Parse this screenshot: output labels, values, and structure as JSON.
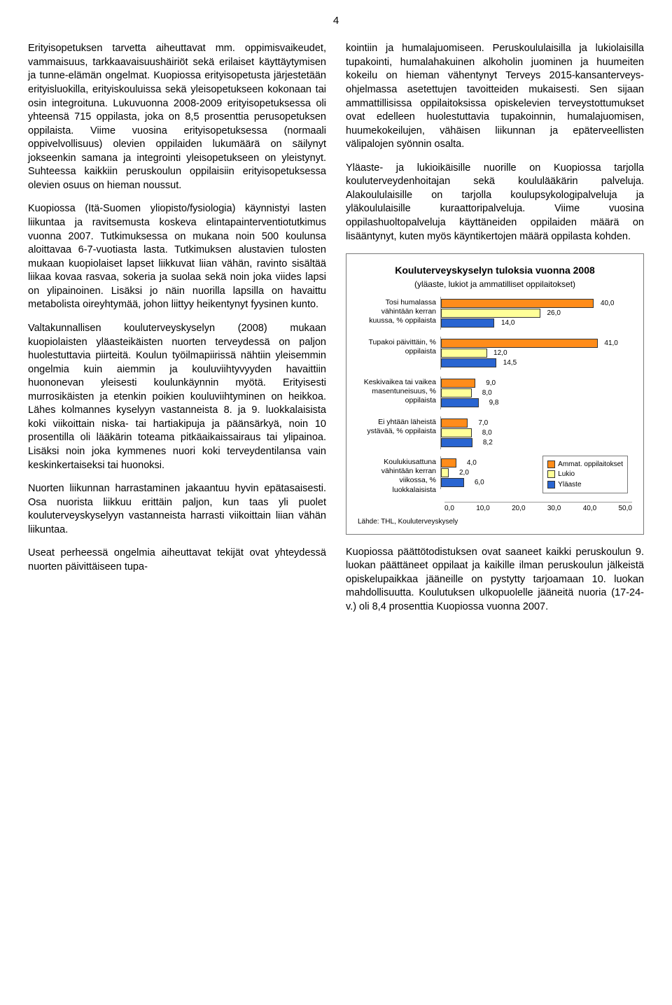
{
  "pageNumber": "4",
  "leftColumn": {
    "paragraphs": [
      "Erityisopetuksen tarvetta aiheuttavat mm. oppimisvaikeudet, vammaisuus, tarkkaavaisuushäiriöt sekä erilaiset käyttäytymisen ja tunne-elämän ongelmat. Kuopiossa erityisopetusta järjestetään erityisluokilla, erityiskouluissa sekä yleisopetukseen kokonaan tai osin integroituna. Lukuvuonna 2008-2009 erityisopetuksessa oli yhteensä 715 oppilasta, joka on 8,5 prosenttia perusopetuksen oppilaista. Viime vuosina erityisopetuksessa (normaali oppivelvollisuus) olevien oppilaiden lukumäärä on säilynyt jokseenkin samana ja integrointi yleisopetukseen on yleistynyt. Suhteessa kaikkiin peruskoulun oppilaisiin erityisopetuksessa olevien osuus on hieman noussut.",
      "Kuopiossa (Itä-Suomen yliopisto/fysiologia) käynnistyi lasten liikuntaa ja ravitsemusta koskeva elintapainterventiotutkimus vuonna 2007. Tutkimuksessa on mukana noin 500 koulunsa aloittavaa 6-7-vuotiasta lasta. Tutkimuksen alustavien tulosten mukaan kuopiolaiset lapset liikkuvat liian vähän, ravinto sisältää liikaa kovaa rasvaa, sokeria ja suolaa sekä noin joka viides lapsi on ylipainoinen. Lisäksi jo näin nuorilla lapsilla on havaittu metabolista oireyhtymää, johon liittyy heikentynyt fyysinen kunto.",
      "Valtakunnallisen kouluterveyskyselyn (2008) mukaan kuopiolaisten yläasteikäisten nuorten terveydessä on paljon huolestuttavia piirteitä. Koulun työilmapiirissä nähtiin yleisemmin ongelmia kuin aiemmin ja kouluviihtyvyyden havaittiin huononevan yleisesti koulunkäynnin myötä. Erityisesti murrosikäisten ja etenkin poikien kouluviihtyminen on heikkoa. Lähes kolmannes kyselyyn vastanneista 8. ja 9. luokkalaisista koki viikoittain niska- tai hartiakipuja ja päänsärkyä, noin 10 prosentilla oli lääkärin toteama pitkäaikaissairaus tai ylipainoa. Lisäksi noin joka kymmenes nuori koki terveydentilansa vain keskinkertaiseksi tai huonoksi.",
      "Nuorten liikunnan harrastaminen jakaantuu hyvin epätasaisesti. Osa nuorista liikkuu erittäin paljon, kun taas yli puolet kouluterveyskyselyyn vastanneista harrasti viikoittain liian vähän liikuntaa.",
      "Useat perheessä ongelmia aiheuttavat tekijät ovat yhteydessä nuorten päivittäiseen tupa-"
    ]
  },
  "rightColumn": {
    "paragraphs": [
      "kointiin ja humalajuomiseen. Peruskoululaisilla ja lukiolaisilla tupakointi, humalahakuinen alkoholin juominen ja huumeiten kokeilu on hieman vähentynyt Terveys 2015-kansanterveys-ohjelmassa asetettujen tavoitteiden mukaisesti. Sen sijaan ammattillisissa oppilaitoksissa opiskelevien terveystottumukset ovat edelleen huolestuttavia tupakoinnin, humalajuomisen, huumekokeilujen, vähäisen liikunnan ja epäterveellisten välipalojen syönnin osalta.",
      "Yläaste- ja lukioikäisille nuorille on Kuopiossa tarjolla kouluterveydenhoitajan sekä koululääkärin palveluja. Alakoululaisille on tarjolla koulupsykologipalveluja ja yläkoululaisille kuraattoripalveluja. Viime vuosina oppilashuoltopalveluja käyttäneiden oppilaiden määrä on lisääntynyt, kuten myös käyntikertojen määrä oppilasta kohden."
    ],
    "closing": "Kuopiossa päättötodistuksen ovat saaneet kaikki peruskoulun 9. luokan päättäneet oppilaat ja kaikille ilman peruskoulun jälkeistä opiskelupaikkaa jääneille on pystytty tarjoamaan 10. luokan mahdollisuutta. Koulutuksen ulkopuolelle jääneitä nuoria (17-24-v.) oli 8,4 prosenttia Kuopiossa vuonna 2007."
  },
  "chart": {
    "title": "Kouluterveyskyselyn tuloksia vuonna 2008",
    "subtitle": "(yläaste, lukiot ja ammatilliset oppilaitokset)",
    "xMax": 50,
    "axisTicks": [
      "0,0",
      "10,0",
      "20,0",
      "30,0",
      "40,0",
      "50,0"
    ],
    "colors": {
      "ammat": "#ff8c1a",
      "lukio": "#ffff99",
      "ylaaste": "#2965d1"
    },
    "legend": [
      {
        "label": "Ammat. oppilaitokset",
        "colorKey": "ammat"
      },
      {
        "label": "Lukio",
        "colorKey": "lukio"
      },
      {
        "label": "Yläaste",
        "colorKey": "ylaaste"
      }
    ],
    "groups": [
      {
        "label": "Tosi humalassa vähintään kerran kuussa, % oppilaista",
        "bars": [
          {
            "colorKey": "ammat",
            "value": 40.0,
            "valueLabel": "40,0"
          },
          {
            "colorKey": "lukio",
            "value": 26.0,
            "valueLabel": "26,0"
          },
          {
            "colorKey": "ylaaste",
            "value": 14.0,
            "valueLabel": "14,0"
          }
        ]
      },
      {
        "label": "Tupakoi päivittäin, % oppilaista",
        "bars": [
          {
            "colorKey": "ammat",
            "value": 41.0,
            "valueLabel": "41,0"
          },
          {
            "colorKey": "lukio",
            "value": 12.0,
            "valueLabel": "12,0"
          },
          {
            "colorKey": "ylaaste",
            "value": 14.5,
            "valueLabel": "14,5"
          }
        ]
      },
      {
        "label": "Keskivaikea tai vaikea masentuneisuus, % oppilaista",
        "bars": [
          {
            "colorKey": "ammat",
            "value": 9.0,
            "valueLabel": "9,0"
          },
          {
            "colorKey": "lukio",
            "value": 8.0,
            "valueLabel": "8,0"
          },
          {
            "colorKey": "ylaaste",
            "value": 9.8,
            "valueLabel": "9,8"
          }
        ]
      },
      {
        "label": "Ei yhtään läheistä ystävää, % oppilaista",
        "bars": [
          {
            "colorKey": "ammat",
            "value": 7.0,
            "valueLabel": "7,0"
          },
          {
            "colorKey": "lukio",
            "value": 8.0,
            "valueLabel": "8,0"
          },
          {
            "colorKey": "ylaaste",
            "value": 8.2,
            "valueLabel": "8,2"
          }
        ]
      },
      {
        "label": "Koulukiusattuna vähintään kerran viikossa, % luokkalaisista",
        "bars": [
          {
            "colorKey": "ammat",
            "value": 4.0,
            "valueLabel": "4,0"
          },
          {
            "colorKey": "lukio",
            "value": 2.0,
            "valueLabel": "2,0"
          },
          {
            "colorKey": "ylaaste",
            "value": 6.0,
            "valueLabel": "6,0"
          }
        ]
      }
    ],
    "source": "Lähde: THL, Kouluterveyskysely"
  }
}
